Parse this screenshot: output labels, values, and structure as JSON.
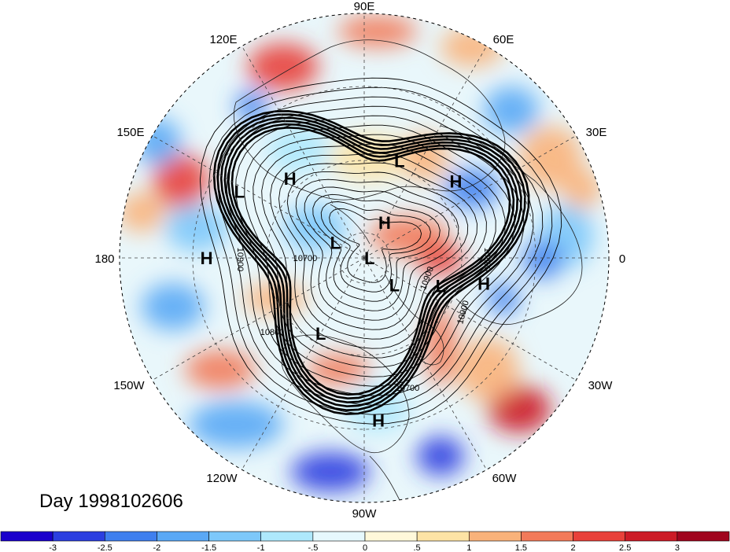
{
  "title": "Day 1998102606",
  "longitude_labels": [
    "90E",
    "60E",
    "30E",
    "0",
    "30W",
    "60W",
    "90W",
    "120W",
    "150W",
    "180",
    "150E",
    "120E"
  ],
  "pressure_centers": [
    {
      "type": "L",
      "lon": 70,
      "lat": 52
    },
    {
      "type": "H",
      "lon": 40,
      "lat": 46
    },
    {
      "type": "H",
      "lon": 60,
      "lat": 75
    },
    {
      "type": "L",
      "lon": 152,
      "lat": 38
    },
    {
      "type": "H",
      "lon": 133,
      "lat": 50
    },
    {
      "type": "H",
      "lon": 180,
      "lat": 32
    },
    {
      "type": "L",
      "lon": 152,
      "lat": 78
    },
    {
      "type": "L",
      "lon": 0,
      "lat": 88
    },
    {
      "type": "L",
      "lon": -42,
      "lat": 75
    },
    {
      "type": "L",
      "lon": -20,
      "lat": 60
    },
    {
      "type": "H",
      "lon": -12,
      "lat": 45
    },
    {
      "type": "L",
      "lon": -120,
      "lat": 58
    },
    {
      "type": "H",
      "lon": -85,
      "lat": 30
    }
  ],
  "contour_labels": [
    "10900",
    "10700",
    "10800",
    "10900",
    "10800",
    "10900",
    "10700"
  ],
  "colorbar": {
    "labels": [
      "-3",
      "-2.5",
      "-2",
      "-1.5",
      "-1",
      "-.5",
      "0",
      ".5",
      "1",
      "1.5",
      "2",
      "2.5",
      "3"
    ],
    "colors": [
      "#1a00cc",
      "#2b3fe0",
      "#3f7fee",
      "#5aa8f5",
      "#7dc8fa",
      "#aee8fc",
      "#e6f8fd",
      "#fff8da",
      "#fde3a5",
      "#f9b27a",
      "#f27a5a",
      "#e8413a",
      "#cc1b26",
      "#a0051e"
    ]
  }
}
